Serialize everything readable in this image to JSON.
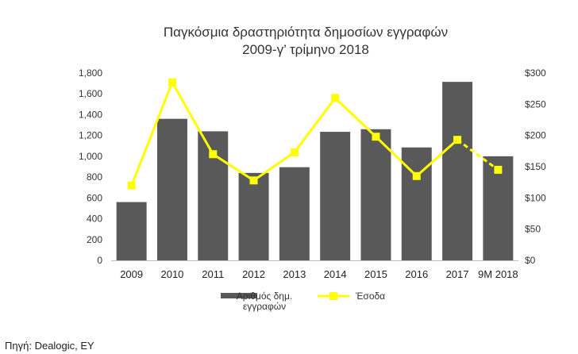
{
  "chart_data": {
    "type": "bar",
    "title_lines": [
      "Παγκόσμια δραστηριότητα δημοσίων εγγραφών",
      "2009-γ’ τρίμηνο 2018"
    ],
    "categories": [
      "2009",
      "2010",
      "2011",
      "2012",
      "2013",
      "2014",
      "2015",
      "2016",
      "2017",
      "9M 2018"
    ],
    "left_axis": {
      "min": 0,
      "max": 1800,
      "step": 200,
      "ticks": [
        "0",
        "200",
        "400",
        "600",
        "800",
        "1,000",
        "1,200",
        "1,400",
        "1,600",
        "1,800"
      ]
    },
    "right_axis": {
      "min": 0,
      "max": 300,
      "step": 50,
      "ticks": [
        "$0",
        "$50",
        "$100",
        "$150",
        "$200",
        "$250",
        "$300"
      ]
    },
    "series": [
      {
        "name_lines": [
          "Αριθμός δημ.",
          "εγγραφών"
        ],
        "type": "bar",
        "axis": "left",
        "color": "#595959",
        "values": [
          560,
          1360,
          1240,
          840,
          895,
          1235,
          1260,
          1085,
          1715,
          1000
        ]
      },
      {
        "name_lines": [
          "Έσοδα"
        ],
        "type": "line",
        "axis": "right",
        "color": "#ffff00",
        "values": [
          120,
          285,
          170,
          128,
          173,
          260,
          198,
          135,
          193,
          145
        ],
        "dashed_last_segment": true
      }
    ],
    "grid": false,
    "legend_position": "bottom"
  },
  "source": "Πηγή: Dealogic, EY"
}
